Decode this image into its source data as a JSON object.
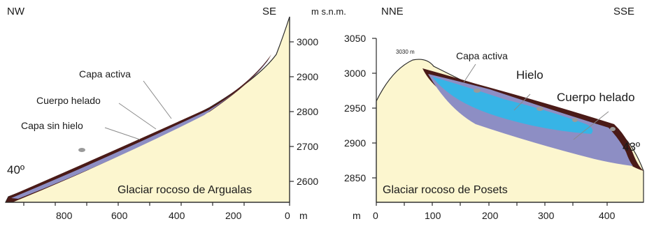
{
  "colors": {
    "sky": "#ffffff",
    "terrain": "#fcf6cf",
    "terrain_outline": "#2a2a2a",
    "active_layer": "#4a1a17",
    "frozen_body": "#8d8ec4",
    "ice": "#37b4e6",
    "leader_line": "#8a8a8a",
    "boulder": "#9a9a9a"
  },
  "panels": [
    {
      "id": "argualas",
      "dir_left": "NW",
      "dir_right": "SE",
      "title": "Glaciar rocoso de Argualas",
      "slope_angle": "40º",
      "labels": {
        "active": "Capa activa",
        "frozen": "Cuerpo helado",
        "unfrozen": "Capa sin hielo"
      },
      "x_axis": {
        "unit": "m",
        "ticks": [
          "800",
          "600",
          "400",
          "200",
          "0"
        ]
      },
      "y_axis": {
        "unit": "m s.n.m.",
        "ticks": [
          "3000",
          "2900",
          "2800",
          "2700",
          "2600"
        ]
      }
    },
    {
      "id": "posets",
      "dir_left": "NNE",
      "dir_right": "SSE",
      "title": "Glaciar rocoso de Posets",
      "slope_angle": "43º",
      "summit": "3030 m",
      "labels": {
        "active": "Capa activa",
        "ice": "Hielo",
        "frozen": "Cuerpo helado"
      },
      "x_axis": {
        "unit": "m",
        "ticks": [
          "0",
          "100",
          "200",
          "300",
          "400"
        ]
      },
      "y_axis": {
        "ticks": [
          "3050",
          "3000",
          "2950",
          "2900",
          "2850"
        ]
      }
    }
  ]
}
